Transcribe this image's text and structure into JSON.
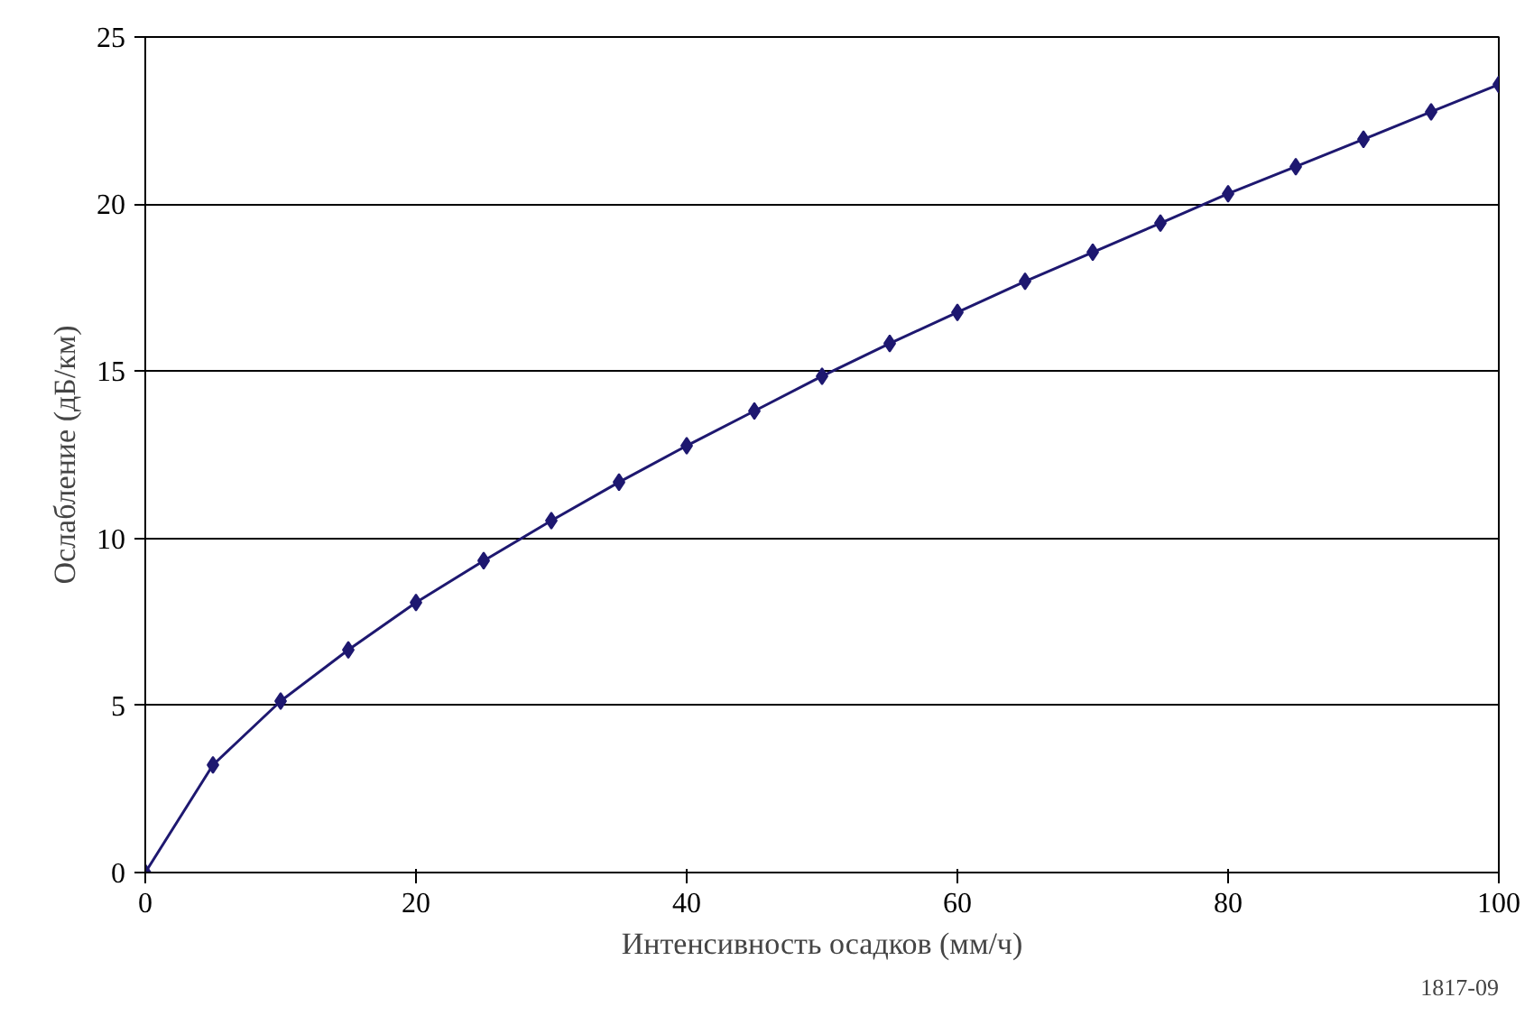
{
  "chart_data": {
    "type": "line",
    "xlabel": "Интенсивность осадков (мм/ч)",
    "ylabel": "Ослабление (дБ/км)",
    "x": [
      0,
      5,
      10,
      15,
      20,
      25,
      30,
      35,
      40,
      45,
      50,
      55,
      60,
      65,
      70,
      75,
      80,
      85,
      90,
      95,
      100
    ],
    "series": [
      {
        "color": "#1e1870",
        "values": [
          0,
          3.22,
          5.13,
          6.66,
          8.08,
          9.33,
          10.53,
          11.68,
          12.77,
          13.81,
          14.85,
          15.83,
          16.76,
          17.69,
          18.56,
          19.43,
          20.31,
          21.12,
          21.94,
          22.76,
          23.58
        ]
      }
    ],
    "xlim": [
      0,
      100
    ],
    "ylim": [
      0,
      25
    ],
    "xticks": [
      0,
      20,
      40,
      60,
      80,
      100
    ],
    "yticks": [
      0,
      5,
      10,
      15,
      20,
      25
    ],
    "grid": "y",
    "marker": "diamond",
    "line_style": "solid",
    "annotations": [
      "1817-09"
    ]
  }
}
